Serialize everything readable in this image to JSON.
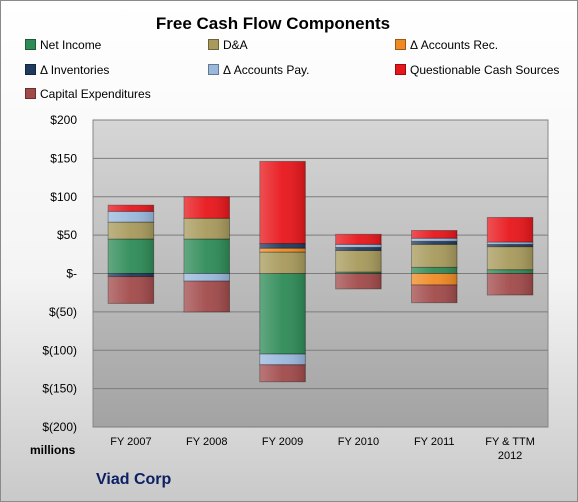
{
  "chart_data": {
    "type": "bar",
    "stacked": true,
    "title": "Free Cash Flow Components",
    "units_label": "millions",
    "company": "Viad Corp",
    "categories": [
      "FY 2007",
      "FY 2008",
      "FY 2009",
      "FY 2010",
      "FY 2011",
      "FY & TTM 2012"
    ],
    "y_ticks": [
      {
        "value": 200,
        "label": "$200"
      },
      {
        "value": 150,
        "label": "$150"
      },
      {
        "value": 100,
        "label": "$100"
      },
      {
        "value": 50,
        "label": "$50"
      },
      {
        "value": 0,
        "label": "$-"
      },
      {
        "value": -50,
        "label": "$(50)"
      },
      {
        "value": -100,
        "label": "$(100)"
      },
      {
        "value": -150,
        "label": "$(150)"
      },
      {
        "value": -200,
        "label": "$(200)"
      }
    ],
    "ylim": [
      -200,
      200
    ],
    "grid": true,
    "legend_position": "top",
    "series": [
      {
        "name": "Net Income",
        "color": "#2e8b57",
        "values": [
          45,
          45,
          -105,
          2,
          8,
          5
        ]
      },
      {
        "name": "D&A",
        "color": "#a89a5c",
        "values": [
          22,
          27,
          28,
          28,
          30,
          30
        ]
      },
      {
        "name": "Δ Accounts Rec.",
        "color": "#f08a24",
        "values": [
          0,
          0,
          5,
          0,
          -15,
          0
        ]
      },
      {
        "name": "Δ Inventories",
        "color": "#1f3a5f",
        "values": [
          -4,
          0,
          6,
          4,
          4,
          3
        ]
      },
      {
        "name": "Δ Accounts Pay.",
        "color": "#9ab8dc",
        "values": [
          14,
          -10,
          -14,
          4,
          4,
          3
        ]
      },
      {
        "name": "Questionable Cash Sources",
        "color": "#e8161b",
        "values": [
          8,
          28,
          107,
          13,
          10,
          32
        ]
      },
      {
        "name": "Capital Expenditures",
        "color": "#a24a4a",
        "values": [
          -35,
          -40,
          -22,
          -20,
          -23,
          -28
        ]
      }
    ]
  }
}
